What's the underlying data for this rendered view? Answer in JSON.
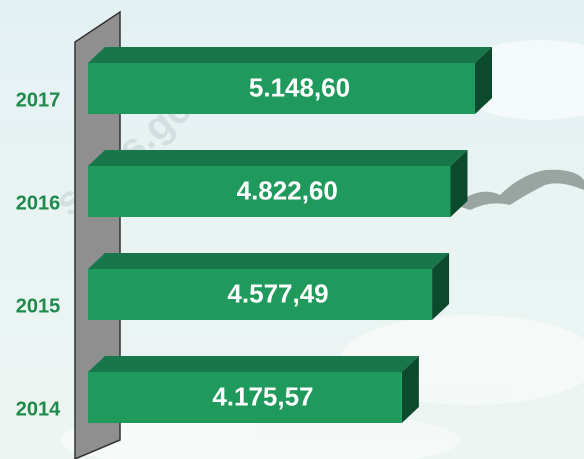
{
  "chart_data": {
    "type": "bar",
    "orientation": "horizontal",
    "categories": [
      "2017",
      "2016",
      "2015",
      "2014"
    ],
    "values": [
      5148.6,
      4822.6,
      4577.49,
      4175.57
    ],
    "value_labels": [
      "5.148,60",
      "4.822,60",
      "4.577,49",
      "4.175,57"
    ],
    "color": "#1f9a5c",
    "watermark": "s.bps.go.id"
  }
}
